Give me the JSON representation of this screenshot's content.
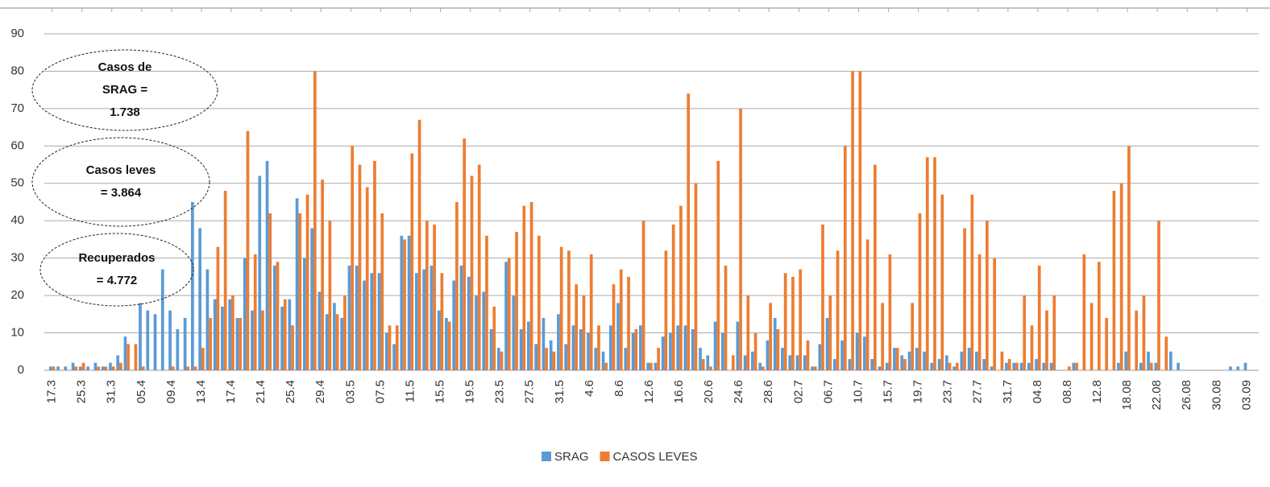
{
  "chart_data": {
    "type": "bar",
    "categories": [
      "17.3",
      null,
      null,
      null,
      "25.3",
      null,
      null,
      null,
      "31.3",
      null,
      null,
      null,
      "05.4",
      null,
      null,
      null,
      "09.4",
      null,
      null,
      null,
      "13.4",
      null,
      null,
      null,
      "17.4",
      null,
      null,
      null,
      "21.4",
      null,
      null,
      null,
      "25.4",
      null,
      null,
      null,
      "29.4",
      null,
      null,
      null,
      "03.5",
      null,
      null,
      null,
      "07.5",
      null,
      null,
      null,
      "11.5",
      null,
      null,
      null,
      "15.5",
      null,
      null,
      null,
      "19.5",
      null,
      null,
      null,
      "23.5",
      null,
      null,
      null,
      "27.5",
      null,
      null,
      null,
      "31.5",
      null,
      null,
      null,
      "4.6",
      null,
      null,
      null,
      "8.6",
      null,
      null,
      null,
      "12.6",
      null,
      null,
      null,
      "16.6",
      null,
      null,
      null,
      "20.6",
      null,
      null,
      null,
      "24.6",
      null,
      null,
      null,
      "28.6",
      null,
      null,
      null,
      "02.7",
      null,
      null,
      null,
      "06.7",
      null,
      null,
      null,
      "10.7",
      null,
      null,
      null,
      "15.7",
      null,
      null,
      null,
      "19.7",
      null,
      null,
      null,
      "23.7",
      null,
      null,
      null,
      "27.7",
      null,
      null,
      null,
      "31.7",
      null,
      null,
      null,
      "04.8",
      null,
      null,
      null,
      "08.8",
      null,
      null,
      null,
      "12.8",
      null,
      null,
      null,
      "18.08",
      null,
      null,
      null,
      "22.08",
      null,
      null,
      null,
      "26.08",
      null,
      null,
      null,
      "30.08",
      null,
      null,
      null,
      "03.09"
    ],
    "series": [
      {
        "name": "SRAG",
        "color": "#5b9bd5",
        "values": [
          1,
          1,
          1,
          2,
          1,
          1,
          2,
          1,
          2,
          4,
          9,
          0,
          18,
          16,
          15,
          27,
          16,
          11,
          14,
          45,
          38,
          27,
          19,
          17,
          19,
          14,
          30,
          16,
          52,
          56,
          28,
          17,
          19,
          46,
          30,
          38,
          21,
          15,
          18,
          14,
          28,
          28,
          24,
          26,
          26,
          10,
          7,
          36,
          36,
          26,
          27,
          28,
          16,
          14,
          24,
          28,
          25,
          20,
          21,
          11,
          6,
          29,
          20,
          11,
          13,
          7,
          14,
          8,
          15,
          7,
          12,
          11,
          10,
          6,
          5,
          12,
          18,
          6,
          10,
          12,
          2,
          2,
          9,
          10,
          12,
          12,
          11,
          6,
          4,
          13,
          10,
          0,
          13,
          4,
          5,
          2,
          8,
          14,
          6,
          4,
          4,
          4,
          1,
          7,
          14,
          3,
          8,
          3,
          10,
          9,
          3,
          1,
          2,
          6,
          4,
          5,
          6,
          5,
          2,
          3,
          4,
          1,
          5,
          6,
          5,
          3,
          1,
          0,
          2,
          2,
          2,
          2,
          3,
          2,
          2,
          0,
          0,
          2,
          0,
          0,
          0,
          0,
          0,
          2,
          5,
          0,
          2,
          5,
          2,
          0,
          5,
          2,
          0,
          0,
          0,
          0,
          0,
          0,
          1,
          1,
          2
        ]
      },
      {
        "name": "CASOS LEVES",
        "color": "#ed7d31",
        "values": [
          1,
          0,
          0,
          1,
          2,
          0,
          1,
          1,
          1,
          2,
          7,
          7,
          1,
          0,
          0,
          0,
          1,
          0,
          1,
          1,
          6,
          14,
          33,
          48,
          20,
          14,
          64,
          31,
          16,
          42,
          29,
          19,
          12,
          42,
          47,
          80,
          51,
          40,
          15,
          20,
          60,
          55,
          49,
          56,
          42,
          12,
          12,
          35,
          58,
          67,
          40,
          39,
          26,
          13,
          45,
          62,
          52,
          55,
          36,
          17,
          5,
          30,
          37,
          44,
          45,
          36,
          6,
          5,
          33,
          32,
          23,
          20,
          31,
          12,
          2,
          23,
          27,
          25,
          11,
          40,
          2,
          6,
          32,
          39,
          44,
          74,
          50,
          3,
          1,
          56,
          28,
          4,
          70,
          20,
          10,
          1,
          18,
          11,
          26,
          25,
          27,
          8,
          1,
          39,
          20,
          32,
          60,
          80,
          80,
          35,
          55,
          18,
          31,
          6,
          3,
          18,
          42,
          57,
          57,
          47,
          2,
          2,
          38,
          47,
          31,
          40,
          30,
          5,
          3,
          2,
          20,
          12,
          28,
          16,
          20,
          0,
          1,
          2,
          31,
          18,
          29,
          14,
          48,
          50,
          60,
          16,
          20,
          2,
          40,
          9,
          0,
          0,
          0,
          0,
          0,
          0,
          0,
          0,
          0,
          0,
          0
        ]
      }
    ],
    "ylim": [
      0,
      90
    ],
    "yticks": [
      0,
      10,
      20,
      30,
      40,
      50,
      60,
      70,
      80,
      90
    ],
    "grid": true,
    "legend": "bottom",
    "annotations": [
      [
        "Casos de",
        "SRAG =",
        "1.738"
      ],
      [
        "Casos leves",
        "= 3.864"
      ],
      [
        "Recuperados",
        "= 4.772"
      ]
    ]
  }
}
